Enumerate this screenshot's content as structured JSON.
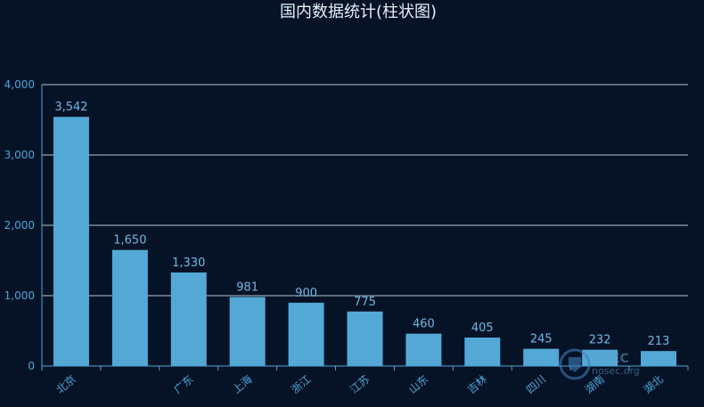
{
  "chart_data": {
    "type": "bar",
    "title": "国内数据统计(柱状图)",
    "categories": [
      "北京",
      "",
      "广东",
      "上海",
      "浙江",
      "江苏",
      "山东",
      "吉林",
      "四川",
      "湖南",
      "湖北"
    ],
    "values": [
      3542,
      1650,
      1330,
      981,
      900,
      775,
      460,
      405,
      245,
      232,
      213
    ],
    "data_labels": [
      "3,542",
      "1,650",
      "1,330",
      "981",
      "900",
      "775",
      "460",
      "405",
      "245",
      "232",
      "213"
    ],
    "yticks": [
      "0",
      "1,000",
      "2,000",
      "3,000",
      "4,000"
    ],
    "ylim": [
      0,
      4000
    ],
    "xlabel": "",
    "ylabel": "",
    "grid": true,
    "colors": {
      "bar": "#54a8d6",
      "background": "#061226",
      "axis": "#4fa6d8"
    }
  },
  "watermark": {
    "brand": "OSEC",
    "site": "nosec.org"
  }
}
